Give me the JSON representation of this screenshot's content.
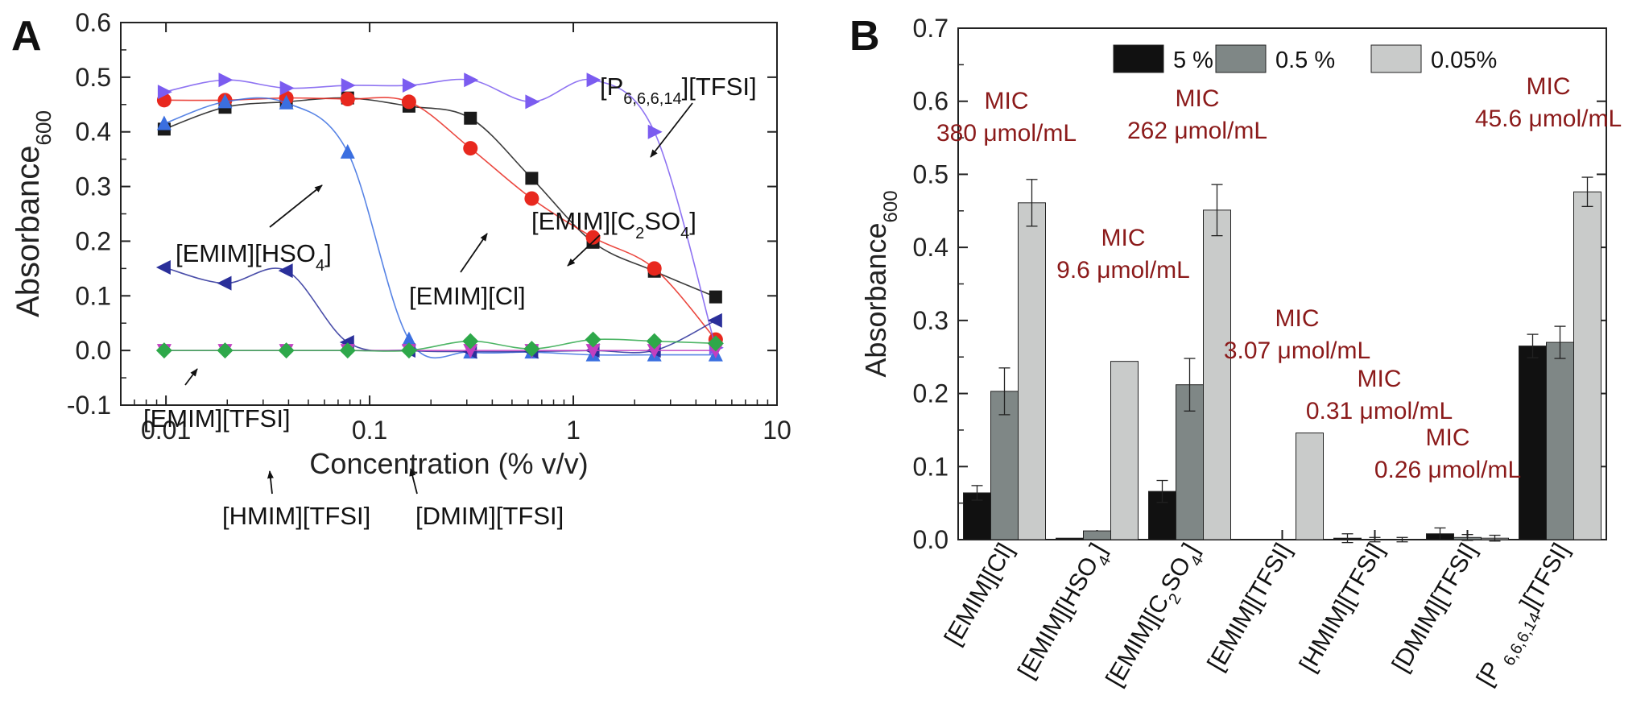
{
  "colors": {
    "black_series": "#1a1a1a",
    "red_series": "#e8281e",
    "blue_series": "#3b6fe0",
    "purple_series": "#7b5cf0",
    "navy_series": "#2a2f9a",
    "green_series": "#2ea84a",
    "bar_5": "#111111",
    "bar_05": "#7f8786",
    "bar_005": "#c9cbca",
    "mic_text": "#8b1a1a"
  },
  "chart_data": [
    {
      "panel": "A",
      "type": "line",
      "xscale": "log",
      "xlim": [
        0.006,
        10
      ],
      "ylim": [
        -0.1,
        0.6
      ],
      "xlabel": "Concentration (% v/v)",
      "ylabel": "Absorbance",
      "ylabel_sub": "600",
      "xticks": [
        0.01,
        0.1,
        1,
        10
      ],
      "xtick_labels": [
        "0.01",
        "0.1",
        "1",
        "10"
      ],
      "yticks": [
        -0.1,
        0.0,
        0.1,
        0.2,
        0.3,
        0.4,
        0.5,
        0.6
      ],
      "ytick_labels": [
        "-0.1",
        "0.0",
        "0.1",
        "0.2",
        "0.3",
        "0.4",
        "0.5",
        "0.6"
      ],
      "x": [
        0.0098,
        0.0195,
        0.039,
        0.078,
        0.156,
        0.3125,
        0.625,
        1.25,
        2.5,
        5.0
      ],
      "series": [
        {
          "name": "[EMIM][C2SO4]",
          "marker": "square",
          "color": "#1a1a1a",
          "values": [
            0.405,
            0.445,
            0.455,
            0.462,
            0.447,
            0.425,
            0.315,
            0.198,
            0.145,
            0.098
          ]
        },
        {
          "name": "[EMIM][Cl]",
          "marker": "circle",
          "color": "#e8281e",
          "values": [
            0.458,
            0.458,
            0.462,
            0.46,
            0.455,
            0.37,
            0.278,
            0.207,
            0.15,
            0.02
          ]
        },
        {
          "name": "[EMIM][HSO4]",
          "marker": "triangle-up",
          "color": "#3b6fe0",
          "values": [
            0.415,
            0.455,
            0.453,
            0.363,
            0.02,
            -0.003,
            -0.003,
            -0.008,
            -0.008,
            -0.008
          ]
        },
        {
          "name": "[P6,6,6,14][TFSI]",
          "marker": "triangle-right",
          "color": "#7b5cf0",
          "values": [
            0.473,
            0.495,
            0.48,
            0.485,
            0.485,
            0.495,
            0.455,
            0.495,
            0.4,
            0.005
          ]
        },
        {
          "name": "[EMIM][TFSI]",
          "marker": "triangle-left",
          "color": "#2a2f9a",
          "values": [
            0.152,
            0.123,
            0.146,
            0.015,
            0.0,
            -0.002,
            -0.002,
            0.0,
            0.0,
            0.055
          ]
        },
        {
          "name": "[HMIM][TFSI]",
          "marker": "triangle-down",
          "color": "#c23fc0",
          "values": [
            0.0,
            0.0,
            0.0,
            0.0,
            0.0,
            0.0,
            0.0,
            0.0,
            0.0,
            0.0
          ]
        },
        {
          "name": "[DMIM][TFSI]",
          "marker": "diamond",
          "color": "#2ea84a",
          "values": [
            0.0,
            0.0,
            0.0,
            0.0,
            0.0,
            0.017,
            0.003,
            0.02,
            0.017,
            0.013
          ]
        }
      ],
      "annotations": [
        {
          "main": "[P",
          "sub": "6,6,6,14",
          "rest": "][TFSI]",
          "arrow_to": "[P6,6,6,14][TFSI]"
        },
        {
          "main": "[EMIM][C",
          "sub": "2",
          "mid": "SO",
          "sub2": "4",
          "rest": "]",
          "arrow_to": "[EMIM][C2SO4]"
        },
        {
          "main": "[EMIM][HSO",
          "sub": "4",
          "rest": "]",
          "arrow_to": "[EMIM][HSO4]"
        },
        {
          "main": "[EMIM][Cl]",
          "arrow_to": "[EMIM][Cl]"
        },
        {
          "main": "[EMIM][TFSI]",
          "arrow_to": "[EMIM][TFSI]"
        },
        {
          "main": "[HMIM][TFSI]",
          "arrow_to": "[HMIM][TFSI]"
        },
        {
          "main": "[DMIM][TFSI]",
          "arrow_to": "[DMIM][TFSI]"
        }
      ]
    },
    {
      "panel": "B",
      "type": "bar",
      "ylim": [
        0.0,
        0.7
      ],
      "ylabel": "Absorbance",
      "ylabel_sub": "600",
      "yticks": [
        0.0,
        0.1,
        0.2,
        0.3,
        0.4,
        0.5,
        0.6,
        0.7
      ],
      "ytick_labels": [
        "0.0",
        "0.1",
        "0.2",
        "0.3",
        "0.4",
        "0.5",
        "0.6",
        "0.7"
      ],
      "categories": [
        {
          "main": "[EMIM][Cl]"
        },
        {
          "main": "[EMIM][HSO",
          "sub": "4",
          "rest": "]"
        },
        {
          "main": "[EMIM][C",
          "sub": "2",
          "mid": "SO",
          "sub2": "4",
          "rest": "]"
        },
        {
          "main": "[EMIM][TFSI]"
        },
        {
          "main": "[HMIM][TFSI]"
        },
        {
          "main": "[DMIM][TFSI]"
        },
        {
          "main": "[P ",
          "sub": "6,6,6,14",
          "rest": "][TFSI]"
        }
      ],
      "series": [
        {
          "name": "5 %",
          "color": "#111111",
          "values": [
            0.064,
            0.002,
            0.066,
            0.0,
            0.002,
            0.008,
            0.265
          ],
          "errors": [
            0.01,
            0.0,
            0.015,
            0.0,
            0.006,
            0.008,
            0.016
          ]
        },
        {
          "name": "0.5 %",
          "color": "#7f8786",
          "values": [
            0.203,
            0.012,
            0.212,
            0.0,
            0.0,
            0.003,
            0.27
          ],
          "errors": [
            0.032,
            0.0,
            0.036,
            0.0,
            0.003,
            0.004,
            0.022
          ]
        },
        {
          "name": "0.05%",
          "color": "#c9cbca",
          "values": [
            0.461,
            0.244,
            0.451,
            0.146,
            0.0,
            0.002,
            0.476
          ],
          "errors": [
            0.032,
            0.0,
            0.035,
            0.0,
            0.003,
            0.004,
            0.02
          ]
        }
      ],
      "legend_position": "top",
      "mic_annotations": [
        {
          "line1": "MIC",
          "line2": "380 μmol/mL"
        },
        {
          "line1": "MIC",
          "line2": "9.6 μmol/mL"
        },
        {
          "line1": "MIC",
          "line2": "262 μmol/mL"
        },
        {
          "line1": "MIC",
          "line2": "3.07 μmol/mL"
        },
        {
          "line1": "MIC",
          "line2": "0.31 μmol/mL"
        },
        {
          "line1": "MIC",
          "line2": "0.26 μmol/mL"
        },
        {
          "line1": "MIC",
          "line2": "45.6 μmol/mL"
        }
      ]
    }
  ]
}
